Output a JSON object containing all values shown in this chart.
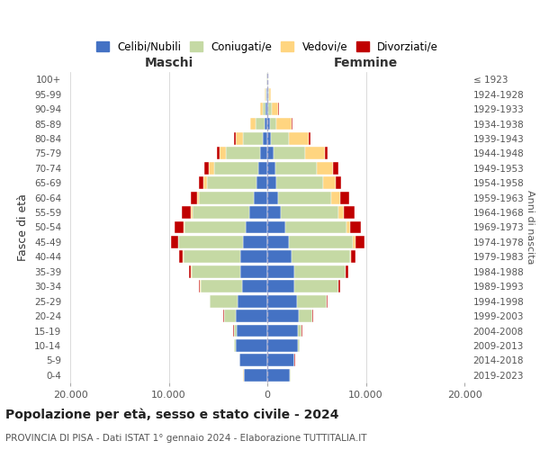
{
  "age_groups": [
    "0-4",
    "5-9",
    "10-14",
    "15-19",
    "20-24",
    "25-29",
    "30-34",
    "35-39",
    "40-44",
    "45-49",
    "50-54",
    "55-59",
    "60-64",
    "65-69",
    "70-74",
    "75-79",
    "80-84",
    "85-89",
    "90-94",
    "95-99",
    "100+"
  ],
  "birth_years": [
    "2019-2023",
    "2014-2018",
    "2009-2013",
    "2004-2008",
    "1999-2003",
    "1994-1998",
    "1989-1993",
    "1984-1988",
    "1979-1983",
    "1974-1978",
    "1969-1973",
    "1964-1968",
    "1959-1963",
    "1954-1958",
    "1949-1953",
    "1944-1948",
    "1939-1943",
    "1934-1938",
    "1929-1933",
    "1924-1928",
    "≤ 1923"
  ],
  "colors": {
    "celibi": "#4472C4",
    "coniugati": "#C5D9A4",
    "vedovi": "#FFD580",
    "divorziati": "#C00000"
  },
  "maschi": {
    "celibi": [
      2400,
      2800,
      3200,
      3100,
      3200,
      3000,
      2600,
      2700,
      2700,
      2500,
      2200,
      1800,
      1400,
      1100,
      900,
      700,
      500,
      300,
      150,
      80,
      30
    ],
    "coniugati": [
      20,
      50,
      150,
      300,
      1200,
      2800,
      4200,
      5000,
      5800,
      6500,
      6200,
      5800,
      5500,
      5000,
      4500,
      3500,
      2000,
      900,
      350,
      100,
      30
    ],
    "vedovi": [
      2,
      3,
      5,
      5,
      10,
      10,
      20,
      30,
      50,
      80,
      100,
      150,
      200,
      350,
      500,
      600,
      700,
      500,
      200,
      80,
      20
    ],
    "divorziati": [
      3,
      5,
      10,
      20,
      50,
      80,
      150,
      250,
      400,
      700,
      900,
      900,
      700,
      500,
      450,
      300,
      150,
      80,
      50,
      20,
      5
    ]
  },
  "femmine": {
    "celibi": [
      2300,
      2700,
      3100,
      3100,
      3200,
      3000,
      2700,
      2700,
      2500,
      2200,
      1800,
      1400,
      1100,
      900,
      800,
      600,
      400,
      250,
      120,
      60,
      30
    ],
    "coniugati": [
      30,
      80,
      200,
      400,
      1400,
      3000,
      4500,
      5200,
      5900,
      6500,
      6200,
      5800,
      5400,
      4800,
      4200,
      3200,
      1800,
      700,
      300,
      80,
      20
    ],
    "vedovi": [
      2,
      2,
      3,
      5,
      10,
      15,
      30,
      50,
      100,
      250,
      400,
      600,
      900,
      1200,
      1700,
      2000,
      2000,
      1500,
      700,
      200,
      50
    ],
    "divorziati": [
      3,
      5,
      10,
      20,
      50,
      100,
      180,
      280,
      450,
      900,
      1100,
      1100,
      900,
      600,
      550,
      350,
      200,
      100,
      50,
      20,
      5
    ]
  },
  "xlim": 20000,
  "title": "Popolazione per età, sesso e stato civile - 2024",
  "subtitle": "PROVINCIA DI PISA - Dati ISTAT 1° gennaio 2024 - Elaborazione TUTTITALIA.IT",
  "xlabel_left": "Maschi",
  "xlabel_right": "Femmine",
  "ylabel": "Fasce di età",
  "ylabel_right": "Anni di nascita",
  "legend_labels": [
    "Celibi/Nubili",
    "Coniugati/e",
    "Vedovi/e",
    "Divorziati/e"
  ],
  "xtick_labels": [
    "20.000",
    "10.000",
    "0",
    "10.000",
    "20.000"
  ],
  "background_color": "#ffffff"
}
